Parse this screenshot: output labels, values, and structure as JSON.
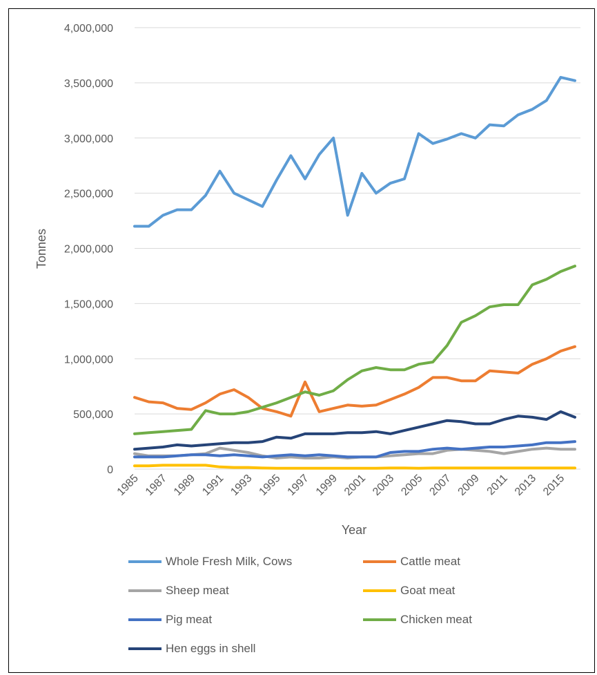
{
  "chart_data": {
    "type": "line",
    "title": "",
    "xlabel": "Year",
    "ylabel": "Tonnes",
    "xlim": [
      1985,
      2016
    ],
    "ylim": [
      0,
      4000000
    ],
    "yticks": [
      0,
      500000,
      1000000,
      1500000,
      2000000,
      2500000,
      3000000,
      3500000,
      4000000
    ],
    "ytick_labels": [
      "0",
      "500,000",
      "1,000,000",
      "1,500,000",
      "2,000,000",
      "2,500,000",
      "3,000,000",
      "3,500,000",
      "4,000,000"
    ],
    "xtick_labels": [
      "1985",
      "1987",
      "1989",
      "1991",
      "1993",
      "1995",
      "1997",
      "1999",
      "2001",
      "2003",
      "2005",
      "2007",
      "2009",
      "2011",
      "2013",
      "2015"
    ],
    "grid": "horizontal",
    "legend_position": "bottom",
    "x": [
      1985,
      1986,
      1987,
      1988,
      1989,
      1990,
      1991,
      1992,
      1993,
      1994,
      1995,
      1996,
      1997,
      1998,
      1999,
      2000,
      2001,
      2002,
      2003,
      2004,
      2005,
      2006,
      2007,
      2008,
      2009,
      2010,
      2011,
      2012,
      2013,
      2014,
      2015,
      2016
    ],
    "series": [
      {
        "name": "Whole Fresh Milk, Cows",
        "color": "#5B9BD5",
        "values": [
          2200000,
          2200000,
          2300000,
          2350000,
          2350000,
          2480000,
          2700000,
          2500000,
          2440000,
          2380000,
          2620000,
          2840000,
          2630000,
          2850000,
          3000000,
          2300000,
          2680000,
          2500000,
          2590000,
          2630000,
          3040000,
          2950000,
          2990000,
          3040000,
          3000000,
          3120000,
          3110000,
          3210000,
          3260000,
          3340000,
          3550000,
          3520000
        ]
      },
      {
        "name": "Cattle meat",
        "color": "#ED7D31",
        "values": [
          650000,
          610000,
          600000,
          550000,
          540000,
          600000,
          680000,
          720000,
          650000,
          550000,
          520000,
          480000,
          790000,
          520000,
          550000,
          580000,
          570000,
          580000,
          630000,
          680000,
          740000,
          830000,
          830000,
          800000,
          800000,
          890000,
          880000,
          870000,
          950000,
          1000000,
          1070000,
          1110000
        ]
      },
      {
        "name": "Sheep meat",
        "color": "#A5A5A5",
        "values": [
          140000,
          120000,
          120000,
          120000,
          130000,
          140000,
          190000,
          170000,
          150000,
          120000,
          100000,
          110000,
          100000,
          100000,
          110000,
          100000,
          110000,
          110000,
          120000,
          130000,
          140000,
          140000,
          170000,
          180000,
          170000,
          160000,
          140000,
          160000,
          180000,
          190000,
          180000,
          180000
        ]
      },
      {
        "name": "Goat meat",
        "color": "#FFC000",
        "values": [
          30000,
          30000,
          35000,
          35000,
          35000,
          35000,
          20000,
          15000,
          15000,
          10000,
          8000,
          8000,
          8000,
          8000,
          8000,
          8000,
          8000,
          8000,
          10000,
          10000,
          8000,
          10000,
          10000,
          10000,
          10000,
          10000,
          10000,
          10000,
          10000,
          10000,
          10000,
          10000
        ]
      },
      {
        "name": "Pig meat",
        "color": "#4472C4",
        "values": [
          110000,
          110000,
          110000,
          120000,
          130000,
          130000,
          120000,
          130000,
          120000,
          110000,
          120000,
          130000,
          120000,
          130000,
          120000,
          110000,
          110000,
          110000,
          150000,
          160000,
          160000,
          180000,
          190000,
          180000,
          190000,
          200000,
          200000,
          210000,
          220000,
          240000,
          240000,
          250000
        ]
      },
      {
        "name": "Chicken meat",
        "color": "#70AD47",
        "values": [
          320000,
          330000,
          340000,
          350000,
          360000,
          530000,
          500000,
          500000,
          520000,
          560000,
          600000,
          650000,
          700000,
          670000,
          710000,
          810000,
          890000,
          920000,
          900000,
          900000,
          950000,
          970000,
          1120000,
          1330000,
          1390000,
          1470000,
          1490000,
          1490000,
          1670000,
          1720000,
          1790000,
          1840000
        ]
      },
      {
        "name": "Hen eggs in shell",
        "color": "#264478",
        "values": [
          180000,
          190000,
          200000,
          220000,
          210000,
          220000,
          230000,
          240000,
          240000,
          250000,
          290000,
          280000,
          320000,
          320000,
          320000,
          330000,
          330000,
          340000,
          320000,
          350000,
          380000,
          410000,
          440000,
          430000,
          410000,
          410000,
          450000,
          480000,
          470000,
          450000,
          520000,
          470000
        ]
      }
    ]
  }
}
